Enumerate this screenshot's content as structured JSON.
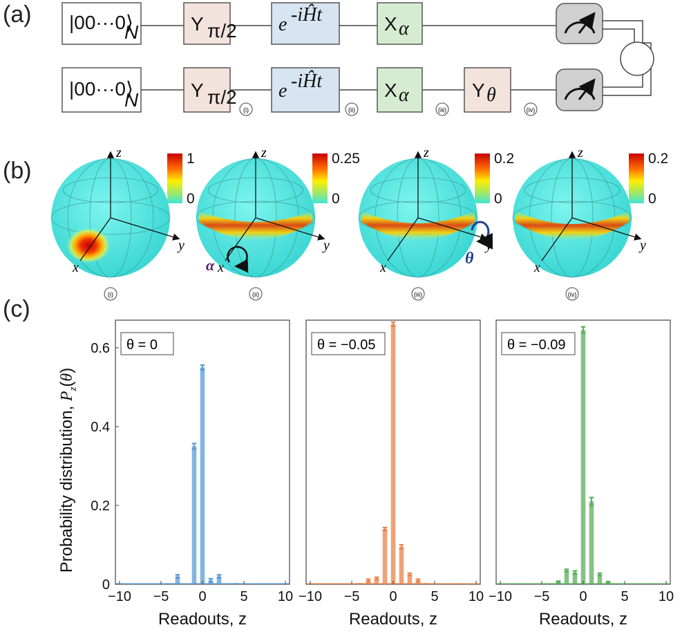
{
  "panel_labels": {
    "a": "(a)",
    "b": "(b)",
    "c": "(c)"
  },
  "circuit": {
    "state_ket": "|00···0⟩",
    "state_sub": "N",
    "gate_y_main": "Y",
    "gate_y_frac": "π/2",
    "gate_evol_base": "e",
    "gate_evol_exp": "-iĤt",
    "gate_x_main": "X",
    "gate_x_sub": "α",
    "gate_ytheta_main": "Y",
    "gate_ytheta_sub": "θ",
    "stage_markers": [
      "(i)",
      "(ii)",
      "(iii)",
      "(iv)"
    ],
    "colors": {
      "y_gate": "#f3e3dd",
      "evol_gate": "#d7e5f2",
      "x_gate": "#d6ecd1",
      "meter": "#d0d0d0"
    }
  },
  "spheres": [
    {
      "stage": "(i)",
      "cb_max": "1",
      "cb_min": "0",
      "annotation": ""
    },
    {
      "stage": "(ii)",
      "cb_max": "0.25",
      "cb_min": "0",
      "annotation": "α"
    },
    {
      "stage": "(iii)",
      "cb_max": "0.2",
      "cb_min": "0",
      "annotation": "θ"
    },
    {
      "stage": "(iv)",
      "cb_max": "0.2",
      "cb_min": "0",
      "annotation": ""
    }
  ],
  "sphere_axes": {
    "x": "x",
    "y": "y",
    "z": "z"
  },
  "sphere_annotation_colors": {
    "alpha": "#5a1a6b",
    "theta": "#1f3f8f"
  },
  "chart_data": [
    {
      "type": "bar",
      "title": "θ = 0",
      "color": "#5b9bd5",
      "xlabel": "Readouts, z",
      "ylabel": "Probability distribution, Pz(θ)",
      "xlim": [
        -10.5,
        10.5
      ],
      "ylim": [
        0,
        0.67
      ],
      "xticks": [
        -10,
        -5,
        0,
        5,
        10
      ],
      "yticks": [
        0,
        0.2,
        0.4,
        0.6
      ],
      "x": [
        -10,
        -9,
        -8,
        -7,
        -6,
        -5,
        -4,
        -3,
        -2,
        -1,
        0,
        1,
        2,
        3,
        4,
        5,
        6,
        7,
        8,
        9,
        10
      ],
      "values": [
        0,
        0,
        0,
        0,
        0,
        0.001,
        0.002,
        0.02,
        0,
        0.35,
        0.55,
        0.01,
        0.02,
        0.002,
        0.003,
        0.001,
        0,
        0,
        0,
        0,
        0
      ],
      "errors": [
        0,
        0,
        0,
        0,
        0,
        0.001,
        0.002,
        0.004,
        0,
        0.007,
        0.006,
        0.004,
        0.004,
        0.002,
        0.002,
        0.001,
        0,
        0,
        0,
        0,
        0
      ]
    },
    {
      "type": "bar",
      "title": "θ = −0.05",
      "color": "#e8834a",
      "xlabel": "Readouts, z",
      "ylabel": "",
      "xlim": [
        -10.5,
        10.5
      ],
      "ylim": [
        0,
        0.67
      ],
      "xticks": [
        -10,
        -5,
        0,
        5,
        10
      ],
      "yticks": [],
      "x": [
        -10,
        -9,
        -8,
        -7,
        -6,
        -5,
        -4,
        -3,
        -2,
        -1,
        0,
        1,
        2,
        3,
        4,
        5,
        6,
        7,
        8,
        9,
        10
      ],
      "values": [
        0,
        0,
        0,
        0,
        0,
        0.001,
        0.003,
        0.01,
        0.015,
        0.14,
        0.66,
        0.095,
        0.025,
        0.01,
        0.003,
        0.001,
        0,
        0,
        0,
        0,
        0
      ],
      "errors": [
        0,
        0,
        0,
        0,
        0,
        0.001,
        0.002,
        0.003,
        0.003,
        0.004,
        0.005,
        0.005,
        0.003,
        0.003,
        0.002,
        0.001,
        0,
        0,
        0,
        0,
        0
      ]
    },
    {
      "type": "bar",
      "title": "θ = −0.09",
      "color": "#5cae5c",
      "xlabel": "Readouts, z",
      "ylabel": "",
      "xlim": [
        -10.5,
        10.5
      ],
      "ylim": [
        0,
        0.67
      ],
      "xticks": [
        -10,
        -5,
        0,
        5,
        10
      ],
      "yticks": [],
      "x": [
        -10,
        -9,
        -8,
        -7,
        -6,
        -5,
        -4,
        -3,
        -2,
        -1,
        0,
        1,
        2,
        3,
        4,
        5,
        6,
        7,
        8,
        9,
        10
      ],
      "values": [
        0,
        0,
        0,
        0,
        0,
        0.001,
        0.002,
        0.006,
        0.035,
        0.03,
        0.645,
        0.21,
        0.025,
        0.005,
        0.002,
        0.001,
        0,
        0,
        0,
        0,
        0
      ],
      "errors": [
        0,
        0,
        0,
        0,
        0,
        0.001,
        0.001,
        0.002,
        0.003,
        0.004,
        0.008,
        0.01,
        0.003,
        0.002,
        0.001,
        0.001,
        0,
        0,
        0,
        0,
        0
      ]
    }
  ]
}
